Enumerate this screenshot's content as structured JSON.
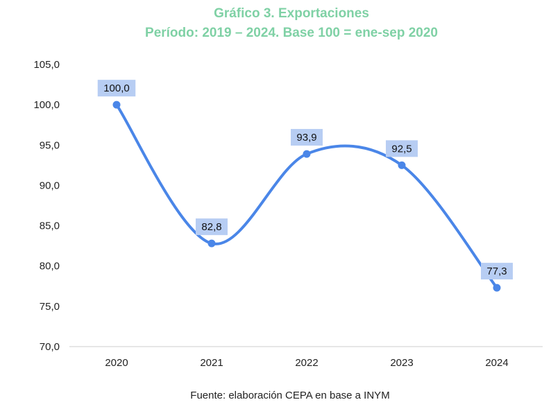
{
  "colors": {
    "title": "#7fd1a5",
    "line": "#4a86e8",
    "label_bg": "#b7cdf3",
    "axis": "#cccccc",
    "text": "#222222"
  },
  "chart_data": {
    "type": "line",
    "title": "Gráfico 3. Exportaciones",
    "subtitle": "Período: 2019 – 2024. Base 100 = ene-sep 2020",
    "categories": [
      "2020",
      "2021",
      "2022",
      "2023",
      "2024"
    ],
    "series": [
      {
        "values": [
          100.0,
          82.8,
          93.9,
          92.5,
          77.3
        ],
        "labels": [
          "100,0",
          "82,8",
          "93,9",
          "92,5",
          "77,3"
        ]
      }
    ],
    "ylim": [
      70,
      105
    ],
    "yticks": [
      70,
      75,
      80,
      85,
      90,
      95,
      100,
      105
    ],
    "ytick_labels": [
      "70,0",
      "75,0",
      "80,0",
      "85,0",
      "90,0",
      "95,0",
      "100,0",
      "105,0"
    ],
    "xlabel": "",
    "ylabel": "",
    "grid": false,
    "legend": "none",
    "smooth": true,
    "source": "Fuente: elaboración CEPA en base a INYM"
  }
}
